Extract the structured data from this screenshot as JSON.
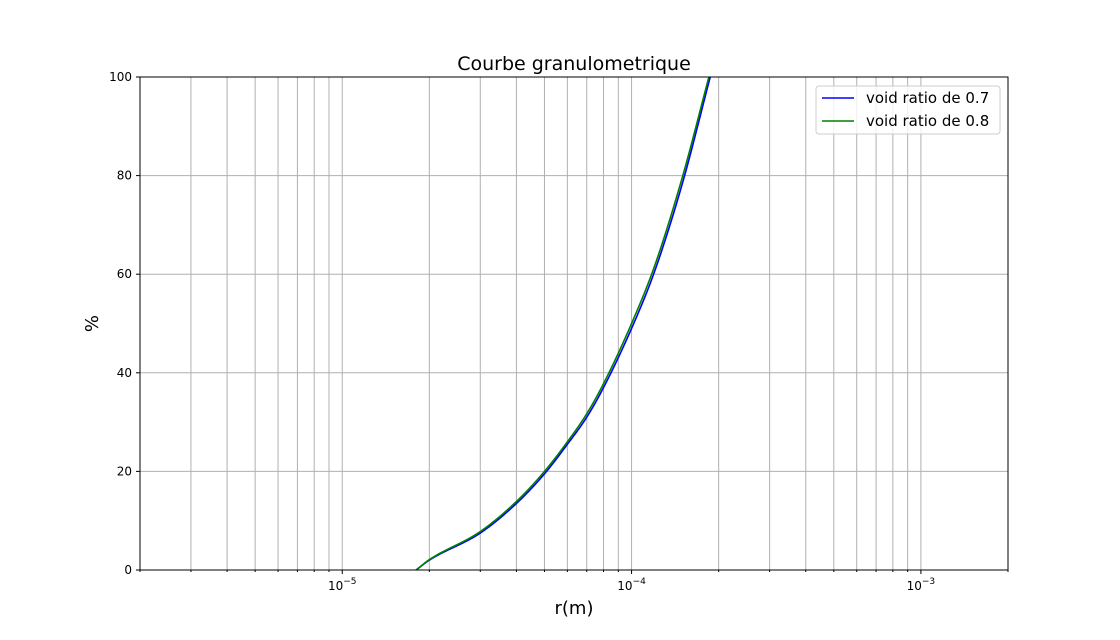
{
  "chart_data": {
    "type": "line",
    "title": "Courbe granulometrique",
    "xlabel": "r(m)",
    "ylabel": "%",
    "xscale": "log",
    "xlim": [
      2e-06,
      0.002
    ],
    "ylim": [
      0,
      100
    ],
    "grid": "on (major and minor)",
    "legend_position": "top-right",
    "x_tick_labels": [
      {
        "value": 1e-05,
        "base": "10",
        "exp": "−5"
      },
      {
        "value": 0.0001,
        "base": "10",
        "exp": "−4"
      },
      {
        "value": 0.001,
        "base": "10",
        "exp": "−3"
      }
    ],
    "y_ticks": [
      0,
      20,
      40,
      60,
      80,
      100
    ],
    "y_tick_labels": [
      "0",
      "20",
      "40",
      "60",
      "80",
      "100"
    ],
    "series": [
      {
        "name": "void ratio de 0.7",
        "color": "#0000ff",
        "x": [
          1.8e-05,
          2e-05,
          3e-05,
          4e-05,
          5e-05,
          6e-05,
          7e-05,
          8e-05,
          0.0001,
          0.00012,
          0.00015,
          0.000187
        ],
        "y": [
          0,
          2,
          7.5,
          13.5,
          19.5,
          25.5,
          31,
          37,
          49,
          60.5,
          78.5,
          100
        ]
      },
      {
        "name": "void ratio de 0.8",
        "color": "#008000",
        "x": [
          1.8e-05,
          2e-05,
          3e-05,
          4e-05,
          5e-05,
          6e-05,
          7e-05,
          8e-05,
          0.0001,
          0.00012,
          0.00015,
          0.000185
        ],
        "y": [
          0,
          2.1,
          7.8,
          13.9,
          20.0,
          26.0,
          31.7,
          37.8,
          50,
          61.6,
          79.8,
          100
        ]
      }
    ]
  }
}
